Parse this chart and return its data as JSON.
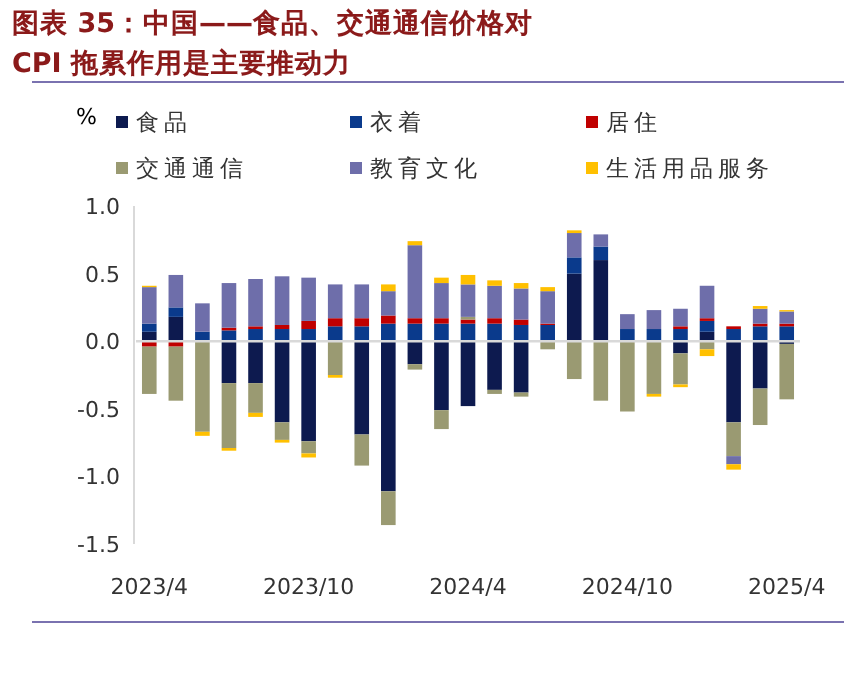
{
  "chart_data": {
    "type": "bar",
    "stacked": true,
    "title": "图表 35：中国——食品、交通通信价格对 CPI 拖累作用是主要推动力",
    "ylabel": "%",
    "categories": [
      "2023/4",
      null,
      null,
      null,
      null,
      null,
      "2023/10",
      null,
      null,
      null,
      null,
      null,
      "2024/4",
      null,
      null,
      null,
      null,
      null,
      "2024/10",
      null,
      null,
      null,
      null,
      null,
      "2025/4"
    ],
    "ylim": [
      -1.5,
      1.0
    ],
    "yticks": [
      {
        "value": 1.0,
        "label": "1.0"
      },
      {
        "value": 0.5,
        "label": "0.5"
      },
      {
        "value": 0.0,
        "label": "0.0"
      },
      {
        "value": -0.5,
        "label": "-0.5"
      },
      {
        "value": -1.0,
        "label": "-1.0"
      },
      {
        "value": -1.5,
        "label": "-1.5"
      }
    ],
    "legend": "top",
    "series": [
      {
        "name": "食品",
        "color": "#0d1a4f",
        "values": [
          0.07,
          0.18,
          0,
          -0.31,
          -0.31,
          -0.6,
          -0.74,
          0,
          -0.69,
          -1.11,
          -0.17,
          -0.51,
          -0.48,
          -0.36,
          -0.38,
          0,
          0.5,
          0.6,
          0,
          0,
          -0.09,
          0.07,
          -0.6,
          -0.35,
          -0.02
        ]
      },
      {
        "name": "衣着",
        "color": "#0a3a8c",
        "values": [
          0.06,
          0.07,
          0.07,
          0.08,
          0.09,
          0.09,
          0.09,
          0.11,
          0.11,
          0.13,
          0.13,
          0.13,
          0.13,
          0.13,
          0.12,
          0.12,
          0.12,
          0.1,
          0.09,
          0.09,
          0.09,
          0.08,
          0.09,
          0.11,
          0.11
        ]
      },
      {
        "name": "居住",
        "color": "#c00000",
        "values": [
          -0.04,
          -0.04,
          0,
          0.02,
          0.02,
          0.03,
          0.06,
          0.06,
          0.06,
          0.06,
          0.04,
          0.04,
          0.03,
          0.04,
          0.04,
          0.01,
          0,
          null,
          null,
          null,
          0.02,
          0.02,
          0.02,
          0.02,
          0.02
        ]
      },
      {
        "name": "交通通信",
        "color": "#9a9a72",
        "values": [
          -0.35,
          -0.4,
          -0.67,
          -0.48,
          -0.22,
          -0.13,
          -0.09,
          -0.25,
          -0.23,
          -0.25,
          -0.04,
          -0.14,
          0.02,
          -0.03,
          -0.03,
          -0.06,
          -0.28,
          -0.44,
          -0.52,
          -0.39,
          -0.23,
          -0.06,
          -0.25,
          -0.27,
          -0.41
        ]
      },
      {
        "name": "教育文化",
        "color": "#6e6eaa",
        "values": [
          0.27,
          0.24,
          0.21,
          0.33,
          0.35,
          0.36,
          0.32,
          0.25,
          0.25,
          0.18,
          0.54,
          0.26,
          0.24,
          0.24,
          0.23,
          0.24,
          0.18,
          0.09,
          0.11,
          0.14,
          0.13,
          0.24,
          -0.06,
          0.11,
          0.09
        ]
      },
      {
        "name": "生活用品服务",
        "color": "#ffc000",
        "values": [
          0.01,
          0,
          -0.03,
          -0.02,
          -0.03,
          -0.02,
          -0.03,
          -0.02,
          0,
          0.05,
          0.03,
          0.04,
          0.07,
          0.04,
          0.04,
          0.03,
          0.02,
          0,
          0,
          -0.02,
          -0.02,
          -0.05,
          -0.04,
          0.02,
          0.01
        ]
      }
    ]
  }
}
